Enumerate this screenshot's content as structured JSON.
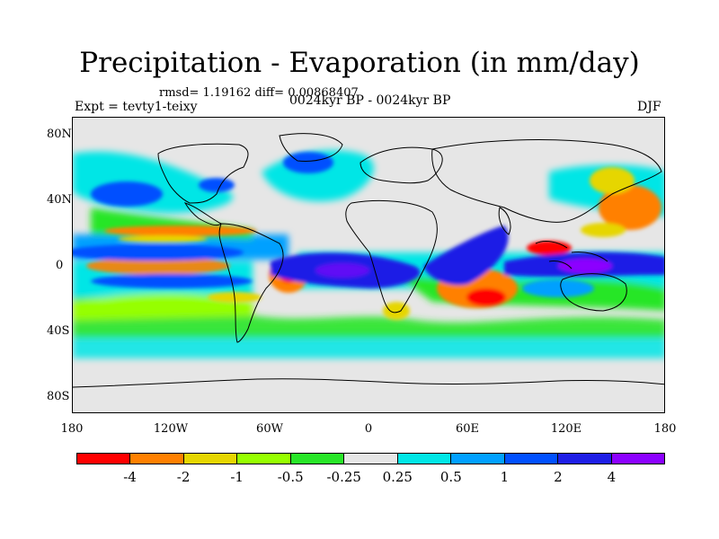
{
  "title": "Precipitation - Evaporation (in mm/day)",
  "stats": "rmsd= 1.19162 diff= 0.00868407",
  "subtitle": "0024kyr BP - 0024kyr BP",
  "experiment": "Expt = tevty1-teixy",
  "season": "DJF",
  "lat_labels": [
    "80N",
    "40N",
    "0",
    "40S",
    "80S"
  ],
  "lon_labels": [
    "180",
    "120W",
    "60W",
    "0",
    "60E",
    "120E",
    "180"
  ],
  "colorbar": {
    "colors": [
      "#ff0000",
      "#ff8000",
      "#e6d600",
      "#96ff00",
      "#28e628",
      "#e6e6e6",
      "#00e6e6",
      "#00a0ff",
      "#0050ff",
      "#1e1ee6",
      "#8c00ff"
    ],
    "labels": [
      "-4",
      "-2",
      "-1",
      "-0.5",
      "-0.25",
      "0.25",
      "0.5",
      "1",
      "2",
      "4"
    ]
  },
  "map": {
    "fields": [
      {
        "name": "pacific-itcz-band",
        "value_bin": "1-2"
      },
      {
        "name": "pacific-south-band",
        "value_bin": "1-2"
      },
      {
        "name": "south-america-convection",
        "value_bin": "2-4"
      },
      {
        "name": "africa-convection",
        "value_bin": "2-4"
      },
      {
        "name": "maritime-continent-convection",
        "value_bin": "2-4"
      },
      {
        "name": "north-atlantic-storm-track",
        "value_bin": "1-2"
      },
      {
        "name": "north-pacific-storm-track",
        "value_bin": "0.5-1"
      },
      {
        "name": "southern-ocean-belt",
        "value_bin": "0.25-0.5"
      },
      {
        "name": "trade-wind-dry-zones",
        "value_bin": "-1 to -2"
      }
    ]
  }
}
